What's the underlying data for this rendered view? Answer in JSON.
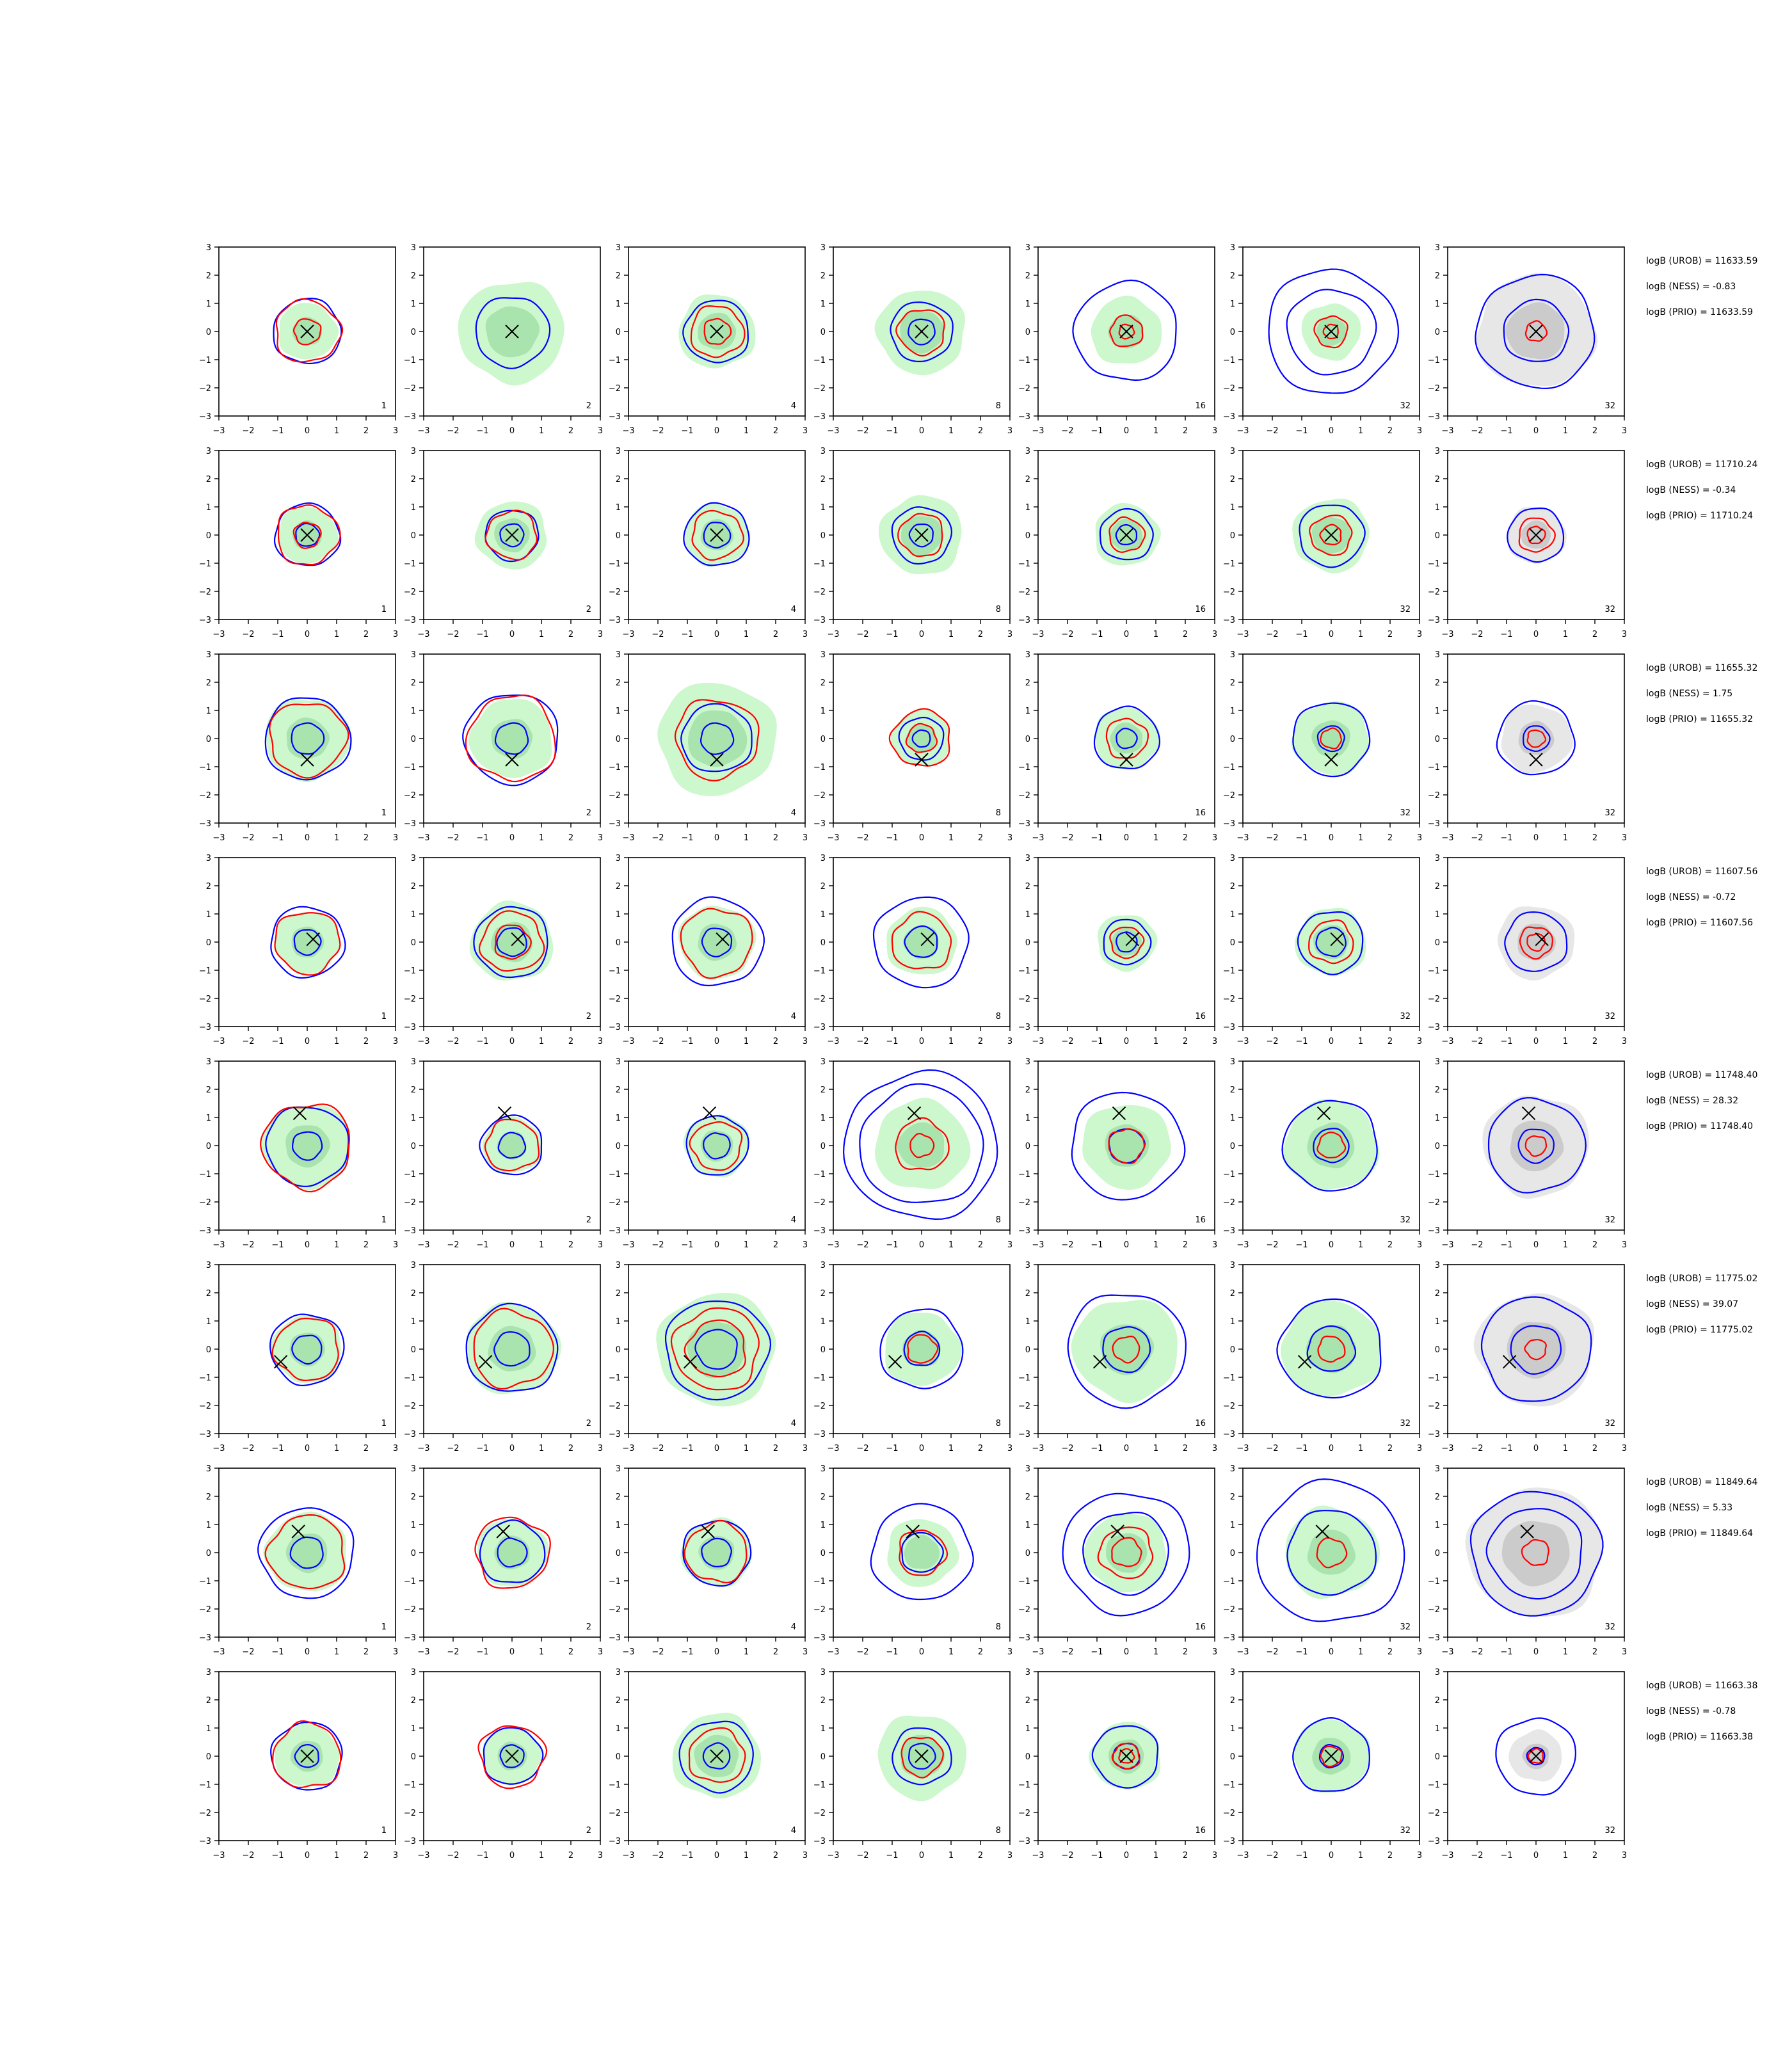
{
  "figure": {
    "background": "#ffffff",
    "colors": {
      "blue_contour": "#0000ff",
      "red_contour": "#ff0000",
      "green_fill": "#90ee90",
      "green_core": "#7ec98a",
      "gray_fill": "#d3d3d3",
      "gray_core": "#a9a9a9",
      "marker": "#000000",
      "axis": "#000000"
    }
  },
  "chart_data": {
    "type": "scatter",
    "grid": false,
    "xlim": [
      -3,
      3
    ],
    "ylim": [
      -3,
      3
    ],
    "xticks": [
      "−3",
      "−2",
      "−1",
      "0",
      "1",
      "2",
      "3"
    ],
    "yticks": [
      "3",
      "2",
      "1",
      "0",
      "−1",
      "−2",
      "−3"
    ],
    "column_labels": [
      "1",
      "2",
      "4",
      "8",
      "16",
      "32",
      "32"
    ],
    "last_column_fill": "gray",
    "rows": [
      {
        "marker": [
          0,
          0
        ],
        "annotations": [
          "logB (UROB) = 11633.59",
          "logB (NESS) = -0.83",
          "logB (PRIO) = 11633.59"
        ],
        "panels": [
          {
            "fill": 1.0,
            "blue": [
              1.15
            ],
            "red": [
              1.1,
              0.45
            ]
          },
          {
            "fill": 1.8,
            "blue": [
              1.25
            ],
            "red": []
          },
          {
            "fill": 1.3,
            "blue": [
              1.1
            ],
            "red": [
              0.9,
              0.45
            ]
          },
          {
            "fill": 1.5,
            "blue": [
              1.05,
              0.45
            ],
            "red": [
              0.8
            ]
          },
          {
            "fill": 1.2,
            "blue": [
              1.75
            ],
            "red": [
              0.55,
              0.25
            ]
          },
          {
            "fill": 1.0,
            "blue": [
              2.2,
              1.5
            ],
            "red": [
              0.55,
              0.25
            ]
          },
          {
            "fill": 2.0,
            "blue": [
              2.0,
              1.1
            ],
            "red": [
              0.35
            ]
          }
        ]
      },
      {
        "marker": [
          0,
          0
        ],
        "annotations": [
          "logB (UROB) = 11710.24",
          "logB (NESS) = -0.34",
          "logB (PRIO) = 11710.24"
        ],
        "panels": [
          {
            "fill": 1.0,
            "blue": [
              1.1,
              0.4
            ],
            "red": [
              1.05,
              0.45
            ]
          },
          {
            "fill": 1.2,
            "blue": [
              0.9,
              0.4
            ],
            "red": [
              0.85
            ]
          },
          {
            "fill": 1.1,
            "blue": [
              1.1,
              0.45
            ],
            "red": [
              0.85
            ]
          },
          {
            "fill": 1.4,
            "blue": [
              1.0,
              0.4
            ],
            "red": [
              0.75
            ]
          },
          {
            "fill": 1.1,
            "blue": [
              0.9,
              0.35
            ],
            "red": [
              0.6
            ]
          },
          {
            "fill": 1.3,
            "blue": [
              1.1
            ],
            "red": [
              0.7,
              0.35
            ]
          },
          {
            "fill": 1.0,
            "blue": [
              0.95
            ],
            "red": [
              0.6,
              0.3
            ]
          }
        ]
      },
      {
        "marker": [
          0,
          -0.75
        ],
        "annotations": [
          "logB (UROB) = 11655.32",
          "logB (NESS) = 1.75",
          "logB (PRIO) = 11655.32"
        ],
        "panels": [
          {
            "fill": 1.45,
            "blue": [
              1.45,
              0.55
            ],
            "red": [
              1.3
            ]
          },
          {
            "fill": 1.4,
            "blue": [
              1.6,
              0.55
            ],
            "red": [
              1.5
            ]
          },
          {
            "fill": 2.0,
            "blue": [
              1.2,
              0.55
            ],
            "red": [
              1.4
            ]
          },
          {
            "fill": 1.0,
            "blue": [
              0.75,
              0.3
            ],
            "red": [
              1.0,
              0.5
            ]
          },
          {
            "fill": 1.1,
            "blue": [
              1.1,
              0.35
            ],
            "red": [
              0.7
            ]
          },
          {
            "fill": 1.3,
            "blue": [
              1.3,
              0.45
            ],
            "red": [
              0.35
            ]
          },
          {
            "fill": 1.2,
            "blue": [
              1.3,
              0.45
            ],
            "red": [
              0.3
            ]
          }
        ]
      },
      {
        "marker": [
          0.2,
          0.1
        ],
        "annotations": [
          "logB (UROB) = 11607.56",
          "logB (NESS) = -0.72",
          "logB (PRIO) = 11607.56"
        ],
        "panels": [
          {
            "fill": 1.1,
            "blue": [
              1.25,
              0.45
            ],
            "red": [
              1.1
            ]
          },
          {
            "fill": 1.4,
            "blue": [
              1.25,
              0.5
            ],
            "red": [
              1.05,
              0.6
            ]
          },
          {
            "fill": 1.3,
            "blue": [
              1.55,
              0.5
            ],
            "red": [
              1.2
            ]
          },
          {
            "fill": 1.2,
            "blue": [
              1.6,
              0.55
            ],
            "red": [
              1.0
            ]
          },
          {
            "fill": 1.0,
            "blue": [
              0.8,
              0.35
            ],
            "red": [
              0.55
            ]
          },
          {
            "fill": 1.2,
            "blue": [
              1.1,
              0.5
            ],
            "red": [
              0.75
            ]
          },
          {
            "fill": 1.3,
            "blue": [
              1.05
            ],
            "red": [
              0.55,
              0.3
            ]
          }
        ]
      },
      {
        "marker": [
          -0.25,
          1.15
        ],
        "annotations": [
          "logB (UROB) = 11748.40",
          "logB (NESS) = 28.32",
          "logB (PRIO) = 11748.40"
        ],
        "panels": [
          {
            "fill": 1.5,
            "blue": [
              1.4,
              0.5
            ],
            "red": [
              1.5
            ]
          },
          {
            "fill": 1.0,
            "blue": [
              1.05,
              0.45
            ],
            "red": [
              0.9
            ]
          },
          {
            "fill": 1.1,
            "blue": [
              1.05,
              0.45
            ],
            "red": [
              0.85
            ]
          },
          {
            "fill": 1.6,
            "blue": [
              2.6,
              2.1
            ],
            "red": [
              0.9,
              0.4
            ]
          },
          {
            "fill": 1.5,
            "blue": [
              1.9,
              0.6
            ],
            "red": [
              0.6
            ]
          },
          {
            "fill": 1.6,
            "blue": [
              1.6,
              0.6
            ],
            "red": [
              0.45
            ]
          },
          {
            "fill": 1.8,
            "blue": [
              1.65,
              0.6
            ],
            "red": [
              0.35
            ]
          }
        ]
      },
      {
        "marker": [
          -0.9,
          -0.45
        ],
        "annotations": [
          "logB (UROB) = 11775.02",
          "logB (NESS) = 39.07",
          "logB (PRIO) = 11775.02"
        ],
        "panels": [
          {
            "fill": 1.2,
            "blue": [
              1.25,
              0.5
            ],
            "red": [
              1.1
            ]
          },
          {
            "fill": 1.6,
            "blue": [
              1.55,
              0.6
            ],
            "red": [
              1.35
            ]
          },
          {
            "fill": 2.0,
            "blue": [
              1.75,
              0.7
            ],
            "red": [
              1.45,
              1.0
            ]
          },
          {
            "fill": 1.3,
            "blue": [
              1.4,
              0.6
            ],
            "red": [
              0.5
            ]
          },
          {
            "fill": 1.8,
            "blue": [
              2.0,
              0.8
            ],
            "red": [
              0.45
            ]
          },
          {
            "fill": 1.7,
            "blue": [
              1.75,
              0.8
            ],
            "red": [
              0.45
            ]
          },
          {
            "fill": 2.0,
            "blue": [
              1.85,
              0.85
            ],
            "red": [
              0.35
            ]
          }
        ]
      },
      {
        "marker": [
          -0.3,
          0.75
        ],
        "annotations": [
          "logB (UROB) = 11849.64",
          "logB (NESS) = 5.33",
          "logB (PRIO) = 11849.64"
        ],
        "panels": [
          {
            "fill": 1.4,
            "blue": [
              1.6,
              0.55
            ],
            "red": [
              1.3
            ]
          },
          {
            "fill": 1.2,
            "blue": [
              1.1,
              0.5
            ],
            "red": [
              1.25
            ]
          },
          {
            "fill": 1.2,
            "blue": [
              1.15,
              0.5
            ],
            "red": [
              1.05
            ]
          },
          {
            "fill": 1.2,
            "blue": [
              1.7,
              0.7
            ],
            "red": [
              0.8
            ]
          },
          {
            "fill": 1.4,
            "blue": [
              2.15,
              1.45
            ],
            "red": [
              0.9,
              0.5
            ]
          },
          {
            "fill": 1.6,
            "blue": [
              2.5,
              1.5
            ],
            "red": [
              0.5
            ]
          },
          {
            "fill": 2.3,
            "blue": [
              2.2,
              1.6
            ],
            "red": [
              0.45
            ]
          }
        ]
      },
      {
        "marker": [
          0,
          0
        ],
        "annotations": [
          "logB (UROB) = 11663.38",
          "logB (NESS) = -0.78",
          "logB (PRIO) = 11663.38"
        ],
        "panels": [
          {
            "fill": 1.1,
            "blue": [
              1.2,
              0.4
            ],
            "red": [
              1.15
            ]
          },
          {
            "fill": 1.0,
            "blue": [
              1.0,
              0.4
            ],
            "red": [
              1.1
            ]
          },
          {
            "fill": 1.5,
            "blue": [
              1.25,
              0.45
            ],
            "red": [
              0.95
            ]
          },
          {
            "fill": 1.5,
            "blue": [
              1.0,
              0.45
            ],
            "red": [
              0.7
            ]
          },
          {
            "fill": 1.2,
            "blue": [
              1.1,
              0.45
            ],
            "red": [
              0.45,
              0.25
            ]
          },
          {
            "fill": 1.3,
            "blue": [
              1.3,
              0.4
            ],
            "red": [
              0.35
            ]
          },
          {
            "fill": 0.9,
            "blue": [
              1.35,
              0.3
            ],
            "red": [
              0.25
            ]
          }
        ]
      }
    ]
  }
}
